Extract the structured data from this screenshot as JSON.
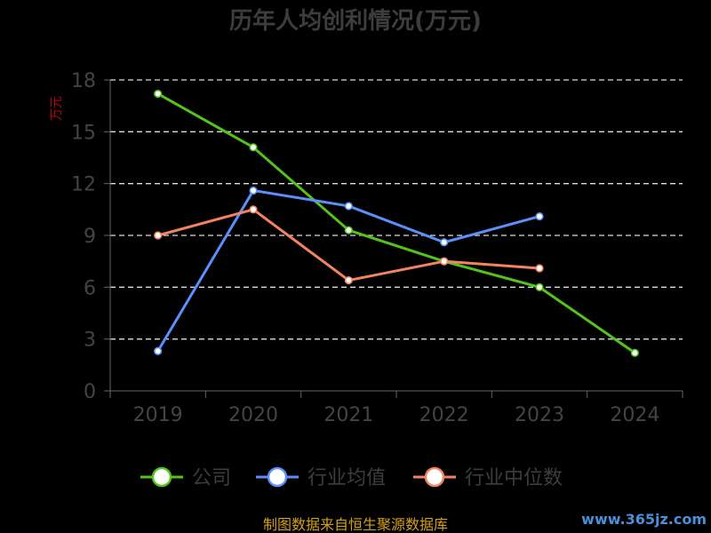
{
  "chart_data": {
    "type": "line",
    "title": "历年人均创利情况(万元)",
    "ylabel": "万元",
    "categories": [
      "2019",
      "2020",
      "2021",
      "2022",
      "2023",
      "2024"
    ],
    "ylim": [
      0,
      18
    ],
    "yticks": [
      "0",
      "3",
      "6",
      "9",
      "12",
      "15",
      "18"
    ],
    "grid": true,
    "legend_position": "bottom",
    "series": [
      {
        "name": "公司",
        "color": "#52c41a",
        "values": [
          17.2,
          14.1,
          9.3,
          7.5,
          6.0,
          2.2
        ]
      },
      {
        "name": "行业均值",
        "color": "#5b8ff9",
        "values": [
          2.3,
          11.6,
          10.7,
          8.6,
          10.1,
          null
        ]
      },
      {
        "name": "行业中位数",
        "color": "#f4845f",
        "values": [
          9.0,
          10.5,
          6.4,
          7.5,
          7.1,
          null
        ]
      }
    ]
  },
  "source_text": "制图数据来自恒生聚源数据库",
  "watermark": "www.365jz.com"
}
